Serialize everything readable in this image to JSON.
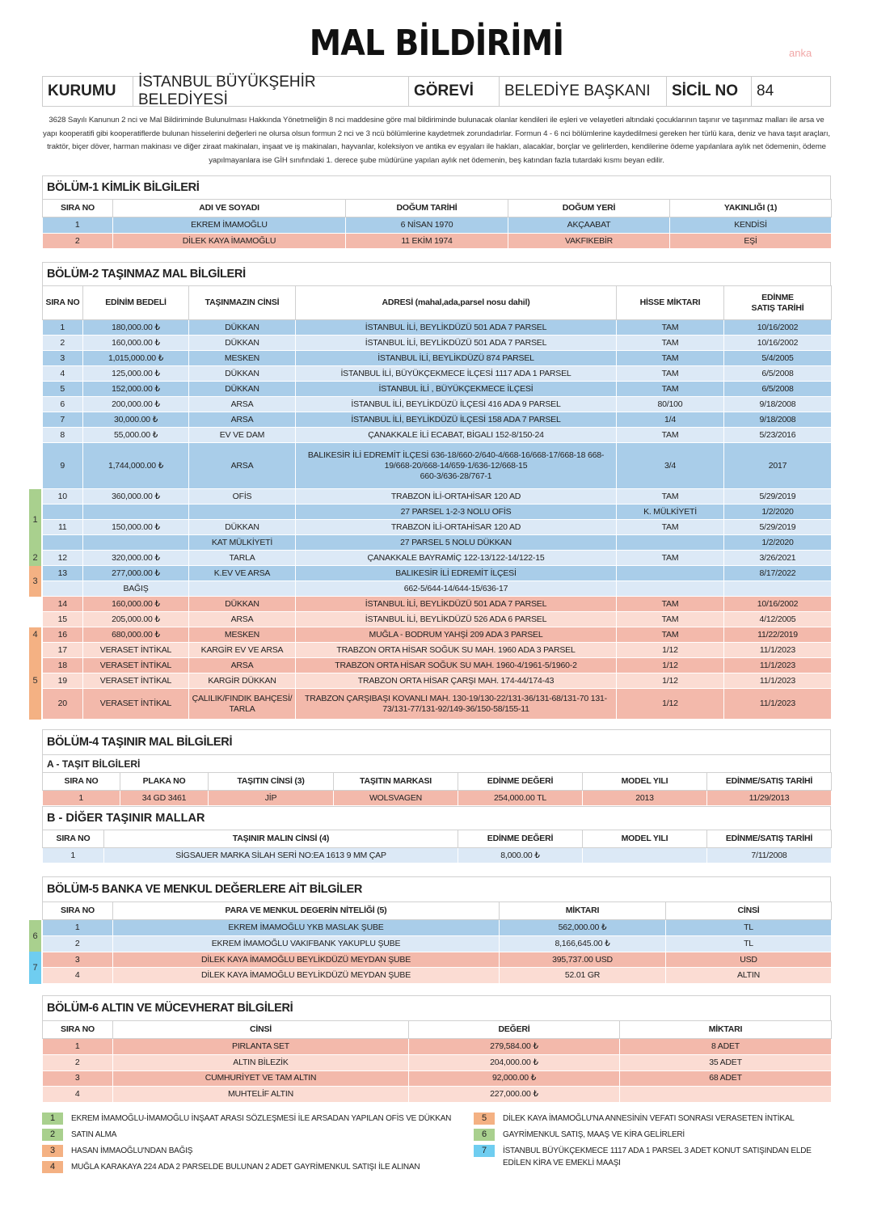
{
  "title": "MAL BİLDİRİMİ",
  "watermark": "anka",
  "header": {
    "kurumu_label": "KURUMU",
    "kurumu": "İSTANBUL BÜYÜKŞEHİR BELEDİYESİ",
    "gorevi_label": "GÖREVİ",
    "gorevi": "BELEDİYE BAŞKANI",
    "sicil_label": "SİCİL NO",
    "sicil": "84"
  },
  "intro": "3628 Sayılı Kanunun 2 nci ve Mal Bildiriminde Bulunulması Hakkında Yönetmeliğin 8 nci maddesine göre mal bildiriminde bulunacak olanlar kendileri ile eşleri ve velayetleri altındaki çocuklarının taşınır ve taşınmaz malları ile arsa ve yapı kooperatifi gibi kooperatiflerde bulunan hisselerini değerleri ne olursa olsun formun 2 nci ve 3 ncü bölümlerine kaydetmek zorundadırlar. Formun 4 - 6 nci bölümlerine kaydedilmesi gereken her türlü kara, deniz ve hava taşıt araçları, traktör, biçer döver, harman makinası ve diğer ziraat makinaları, inşaat ve iş makinaları, hayvanlar, koleksiyon ve antika ev eşyaları ile hakları, alacaklar, borçlar ve gelirlerden, kendilerine ödeme yapılanlara aylık net ödemenin, ödeme yapılmayanlara ise GİH sınıfındaki 1. derece şube müdürüne yapılan aylık net ödemenin, beş katından fazla tutardaki kısmı beyan edilir.",
  "colors": {
    "blue_dark": "#a9cde9",
    "blue_light": "#dce9f6",
    "pink_dark": "#f3b9ab",
    "pink_light": "#fbdcd3",
    "green": "#a9d08e",
    "orange": "#f4b183",
    "cyan": "#6fcdf0"
  },
  "s1": {
    "title": "BÖLÜM-1 KİMLİK BİLGİLERİ",
    "headers": [
      "SIRA NO",
      "ADI VE SOYADI",
      "DOĞUM TARİHİ",
      "DOĞUM YERİ",
      "YAKINLIĞI (1)"
    ],
    "rows": [
      {
        "owner": "ekrem",
        "cells": [
          "1",
          "EKREM İMAMOĞLU",
          "6 NİSAN 1970",
          "AKÇAABAT",
          "KENDİSİ"
        ]
      },
      {
        "owner": "dilek",
        "cells": [
          "2",
          "DİLEK KAYA İMAMOĞLU",
          "11 EKİM 1974",
          "VAKFIKEBİR",
          "EŞİ"
        ]
      }
    ]
  },
  "s2": {
    "title": "BÖLÜM-2 TAŞINMAZ MAL BİLGİLERİ",
    "headers": [
      "SIRA NO",
      "EDİNİM BEDELİ",
      "TAŞINMAZIN CİNSİ",
      "ADRESİ (mahal,ada,parsel nosu dahil)",
      "HİSSE MİKTARI",
      "EDİNME\nSATIŞ TARİHİ"
    ],
    "rows": [
      {
        "owner": "ekrem",
        "cells": [
          "1",
          "180,000.00 ₺",
          "DÜKKAN",
          "İSTANBUL İLİ, BEYLİKDÜZÜ 501 ADA 7 PARSEL",
          "TAM",
          "10/16/2002"
        ]
      },
      {
        "owner": "ekrem",
        "cells": [
          "2",
          "160,000.00 ₺",
          "DÜKKAN",
          "İSTANBUL İLİ, BEYLİKDÜZÜ 501 ADA 7 PARSEL",
          "TAM",
          "10/16/2002"
        ]
      },
      {
        "owner": "ekrem",
        "cells": [
          "3",
          "1,015,000.00 ₺",
          "MESKEN",
          "İSTANBUL İLİ, BEYLİKDÜZÜ 874 PARSEL",
          "TAM",
          "5/4/2005"
        ]
      },
      {
        "owner": "ekrem",
        "cells": [
          "4",
          "125,000.00 ₺",
          "DÜKKAN",
          "İSTANBUL İLİ, BÜYÜKÇEKMECE İLÇESİ 1117 ADA 1 PARSEL",
          "TAM",
          "6/5/2008"
        ]
      },
      {
        "owner": "ekrem",
        "cells": [
          "5",
          "152,000.00 ₺",
          "DÜKKAN",
          "İSTANBUL İLİ , BÜYÜKÇEKMECE İLÇESİ",
          "TAM",
          "6/5/2008"
        ]
      },
      {
        "owner": "ekrem",
        "cells": [
          "6",
          "200,000.00 ₺",
          "ARSA",
          "İSTANBUL İLİ, BEYLİKDÜZÜ İLÇESİ 416 ADA 9 PARSEL",
          "80/100",
          "9/18/2008"
        ]
      },
      {
        "owner": "ekrem",
        "cells": [
          "7",
          "30,000.00 ₺",
          "ARSA",
          "İSTANBUL İLİ, BEYLİKDÜZÜ İLÇESİ 158 ADA 7 PARSEL",
          "1/4",
          "9/18/2008"
        ]
      },
      {
        "owner": "ekrem",
        "cells": [
          "8",
          "55,000.00 ₺",
          "EV VE DAM",
          "ÇANAKKALE İLİ ECABAT, BİGALI 152-8/150-24",
          "TAM",
          "5/23/2016"
        ]
      },
      {
        "owner": "ekrem",
        "tall": 3,
        "cells": [
          "9",
          "1,744,000.00 ₺",
          "ARSA",
          "BALIKESİR İLİ EDREMİT İLÇESİ 636-18/660-2/640-4/668-16/668-17/668-18 668-\n19/668-20/668-14/659-1/636-12/668-15\n660-3/636-28/767-1",
          "3/4",
          "2017"
        ]
      },
      {
        "owner": "ekrem",
        "group": "1",
        "cells": [
          "10",
          "360,000.00 ₺",
          "OFİS",
          "TRABZON İLİ-ORTAHİSAR 120 AD",
          "TAM",
          "5/29/2019"
        ]
      },
      {
        "owner": "ekrem",
        "group": "1",
        "cells": [
          "",
          "",
          "",
          "27 PARSEL 1-2-3 NOLU OFİS",
          "K. MÜLKİYETİ",
          "1/2/2020"
        ]
      },
      {
        "owner": "ekrem",
        "group": "1",
        "cells": [
          "11",
          "150,000.00 ₺",
          "DÜKKAN",
          "TRABZON İLİ-ORTAHİSAR 120 AD",
          "TAM",
          "5/29/2019"
        ]
      },
      {
        "owner": "ekrem",
        "group": "1",
        "cells": [
          "",
          "",
          "KAT MÜLKİYETİ",
          "27 PARSEL 5 NOLU DÜKKAN",
          "",
          "1/2/2020"
        ]
      },
      {
        "owner": "ekrem",
        "group": "2",
        "cells": [
          "12",
          "320,000.00 ₺",
          "TARLA",
          "ÇANAKKALE BAYRAMİÇ 122-13/122-14/122-15",
          "TAM",
          "3/26/2021"
        ]
      },
      {
        "owner": "ekrem",
        "group": "3",
        "cells": [
          "13",
          "277,000.00 ₺",
          "K.EV VE ARSA",
          "BALIKESİR İLİ EDREMİT İLÇESİ",
          "",
          "8/17/2022"
        ]
      },
      {
        "owner": "ekrem",
        "group": "3",
        "cells": [
          "",
          "BAĞIŞ",
          "",
          "662-5/644-14/644-15/636-17",
          "",
          ""
        ]
      },
      {
        "owner": "dilek",
        "cells": [
          "14",
          "160,000.00 ₺",
          "DÜKKAN",
          "İSTANBUL İLİ, BEYLİKDÜZÜ 501 ADA 7 PARSEL",
          "TAM",
          "10/16/2002"
        ]
      },
      {
        "owner": "dilek",
        "cells": [
          "15",
          "205,000.00 ₺",
          "ARSA",
          "İSTANBUL İLİ, BEYLİKDÜZÜ 526 ADA 6 PARSEL",
          "TAM",
          "4/12/2005"
        ]
      },
      {
        "owner": "dilek",
        "group": "4",
        "cells": [
          "16",
          "680,000.00 ₺",
          "MESKEN",
          "MUĞLA - BODRUM YAHŞİ 209 ADA 3 PARSEL",
          "TAM",
          "11/22/2019"
        ]
      },
      {
        "owner": "dilek",
        "group": "5",
        "cells": [
          "17",
          "VERASET İNTİKAL",
          "KARGİR EV VE ARSA",
          "TRABZON ORTA HİSAR SOĞUK SU MAH. 1960 ADA 3 PARSEL",
          "1/12",
          "11/1/2023"
        ]
      },
      {
        "owner": "dilek",
        "group": "5",
        "cells": [
          "18",
          "VERASET İNTİKAL",
          "ARSA",
          "TRABZON ORTA HİSAR SOĞUK SU MAH. 1960-4/1961-5/1960-2",
          "1/12",
          "11/1/2023"
        ]
      },
      {
        "owner": "dilek",
        "group": "5",
        "cells": [
          "19",
          "VERASET İNTİKAL",
          "KARGİR DÜKKAN",
          "TRABZON ORTA HİSAR ÇARŞI MAH. 174-44/174-43",
          "1/12",
          "11/1/2023"
        ]
      },
      {
        "owner": "dilek",
        "group": "5",
        "tall": 2,
        "cells": [
          "20",
          "VERASET İNTİKAL",
          "ÇALILIK/FINDIK BAHÇESİ/\nTARLA",
          "TRABZON ÇARŞIBAŞI KOVANLI MAH. 130-19/130-22/131-36/131-68/131-70 131-\n73/131-77/131-92/149-36/150-58/155-11",
          "1/12",
          "11/1/2023"
        ]
      }
    ]
  },
  "s4": {
    "title": "BÖLÜM-4 TAŞINIR MAL BİLGİLERİ",
    "a_title": "A - TAŞIT BİLGİLERİ",
    "a_headers": [
      "SIRA NO",
      "PLAKA NO",
      "TAŞITIN CİNSİ (3)",
      "TAŞITIN MARKASI",
      "EDİNME DEĞERİ",
      "MODEL YILI",
      "EDİNME/SATIŞ TARİHİ"
    ],
    "a_rows": [
      {
        "owner": "dilek",
        "cells": [
          "1",
          "34 GD 3461",
          "JİP",
          "WOLSVAGEN",
          "254,000.00 TL",
          "2013",
          "11/29/2013"
        ]
      }
    ],
    "b_title": "B - DİĞER TAŞINIR MALLAR",
    "b_headers": [
      "SIRA NO",
      "TAŞINIR MALIN CİNSİ (4)",
      "EDİNME DEĞERİ",
      "MODEL YILI",
      "EDİNME/SATIŞ TARİHİ"
    ],
    "b_rows": [
      {
        "owner": "ekrem",
        "light": true,
        "cells": [
          "1",
          "SİGSAUER MARKA SİLAH SERİ NO:EA 1613 9 MM ÇAP",
          "8,000.00 ₺",
          "",
          "7/11/2008"
        ]
      }
    ]
  },
  "s5": {
    "title": "BÖLÜM-5 BANKA VE MENKUL DEĞERLERE AİT BİLGİLER",
    "headers": [
      "SIRA NO",
      "PARA VE MENKUL DEGERİN NİTELİĞİ (5)",
      "MİKTARI",
      "CİNSİ"
    ],
    "rows": [
      {
        "owner": "ekrem",
        "group": "6",
        "cells": [
          "1",
          "EKREM İMAMOĞLU YKB MASLAK ŞUBE",
          "562,000.00 ₺",
          "TL"
        ]
      },
      {
        "owner": "ekrem",
        "group": "6",
        "cells": [
          "2",
          "EKREM İMAMOĞLU VAKIFBANK YAKUPLU ŞUBE",
          "8,166,645.00 ₺",
          "TL"
        ]
      },
      {
        "owner": "dilek",
        "group": "7",
        "cells": [
          "3",
          "DİLEK KAYA İMAMOĞLU BEYLİKDÜZÜ MEYDAN ŞUBE",
          "395,737.00 USD",
          "USD"
        ]
      },
      {
        "owner": "dilek",
        "group": "7",
        "cells": [
          "4",
          "DİLEK KAYA İMAMOĞLU BEYLİKDÜZÜ MEYDAN ŞUBE",
          "52.01 GR",
          "ALTIN"
        ]
      }
    ]
  },
  "s6": {
    "title": "BÖLÜM-6 ALTIN VE MÜCEVHERAT BİLGİLERİ",
    "headers": [
      "SIRA NO",
      "CİNSİ",
      "DEĞERİ",
      "MİKTARI"
    ],
    "rows": [
      {
        "owner": "dilek",
        "cells": [
          "1",
          "PIRLANTA SET",
          "279,584.00 ₺",
          "8 ADET"
        ]
      },
      {
        "owner": "dilek",
        "cells": [
          "2",
          "ALTIN BİLEZİK",
          "204,000.00 ₺",
          "35 ADET"
        ]
      },
      {
        "owner": "dilek",
        "cells": [
          "3",
          "CUMHURİYET VE TAM ALTIN",
          "92,000.00 ₺",
          "68 ADET"
        ]
      },
      {
        "owner": "dilek",
        "cells": [
          "4",
          "MUHTELİF ALTIN",
          "227,000.00 ₺",
          ""
        ]
      }
    ]
  },
  "legend": [
    {
      "num": "1",
      "color": "#a9d08e",
      "text": "EKREM İMAMOĞLU-İMAMOĞLU İNŞAAT ARASI SÖZLEŞMESİ İLE ARSADAN YAPILAN OFİS VE DÜKKAN"
    },
    {
      "num": "2",
      "color": "#a9d08e",
      "text": "SATIN ALMA"
    },
    {
      "num": "3",
      "color": "#f4b183",
      "text": "HASAN İMMAOĞLU'NDAN BAĞIŞ"
    },
    {
      "num": "4",
      "color": "#f4b183",
      "text": "MUĞLA KARAKAYA 224 ADA 2 PARSELDE BULUNAN 2 ADET GAYRİMENKUL SATIŞI İLE ALINAN"
    },
    {
      "num": "5",
      "color": "#f4b183",
      "text": "DİLEK KAYA İMAMOĞLU'NA ANNESİNİN VEFATI SONRASI VERASETEN İNTİKAL"
    },
    {
      "num": "6",
      "color": "#a9d08e",
      "text": "GAYRİMENKUL SATIŞ, MAAŞ VE KİRA GELİRLERİ"
    },
    {
      "num": "7",
      "color": "#6fcdf0",
      "text": "İSTANBUL BÜYÜKÇEKMECE 1117 ADA 1 PARSEL 3 ADET KONUT SATIŞINDAN ELDE EDİLEN KİRA VE EMEKLİ MAAŞI"
    }
  ]
}
